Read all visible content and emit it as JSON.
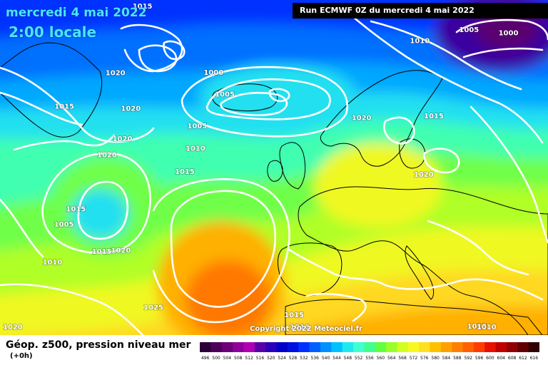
{
  "header": {
    "date_title": "mercredi 4 mai 2022",
    "time_title": "2:00 locale",
    "run_label": "Run ECMWF 0Z du mercredi 4 mai 2022"
  },
  "copyright": "Copyright 2022 Meteociel.fr",
  "footer": {
    "title": "Géop. z500, pression niveau mer",
    "subtitle": "(+0h)"
  },
  "legend": {
    "values": [
      "496",
      "500",
      "504",
      "508",
      "512",
      "516",
      "520",
      "524",
      "528",
      "532",
      "536",
      "540",
      "544",
      "548",
      "552",
      "556",
      "560",
      "564",
      "568",
      "572",
      "576",
      "580",
      "584",
      "588",
      "592",
      "596",
      "600",
      "604",
      "608",
      "612",
      "616"
    ],
    "colors": [
      "#2b0039",
      "#4c0059",
      "#6c0078",
      "#8e0098",
      "#af00b4",
      "#5a00a8",
      "#2a00b8",
      "#0000c8",
      "#0010e0",
      "#0030ff",
      "#0060ff",
      "#0090ff",
      "#00c0ff",
      "#20e8f0",
      "#40ffd0",
      "#40ff90",
      "#60ff40",
      "#98ff28",
      "#d0ff20",
      "#f8f820",
      "#ffe020",
      "#ffc000",
      "#ffa000",
      "#ff8000",
      "#ff6000",
      "#ff3c00",
      "#e81000",
      "#c00000",
      "#900000",
      "#600000",
      "#300000"
    ]
  },
  "map_style": {
    "zones": [
      "#0000c8",
      "#0030ff",
      "#0070ff",
      "#00a8ff",
      "#20e0f0",
      "#40ffb0",
      "#70ff48",
      "#b0ff28",
      "#f0f820",
      "#ffd820",
      "#ffb000",
      "#ff8400",
      "#ff5a00"
    ],
    "high_pressure_core": "#ff7800",
    "low_pressure_core": "#5a0070",
    "isobar_color": "#ffffff",
    "coast_color": "#000000"
  },
  "isobar_labels": [
    {
      "text": "1015",
      "x": -49,
      "y": 76
    },
    {
      "text": "1020",
      "x": -53,
      "y": 66
    },
    {
      "text": "1015",
      "x": -64,
      "y": 62
    },
    {
      "text": "1020",
      "x": -48,
      "y": 61
    },
    {
      "text": "1020",
      "x": -49,
      "y": 57
    },
    {
      "text": "1020",
      "x": -52,
      "y": 55
    },
    {
      "text": "1015",
      "x": -57,
      "y": 48
    },
    {
      "text": "1000",
      "x": -29,
      "y": 65
    },
    {
      "text": "1005",
      "x": -26,
      "y": 62
    },
    {
      "text": "1005",
      "x": -32,
      "y": 58
    },
    {
      "text": "1010",
      "x": -32,
      "y": 55
    },
    {
      "text": "1015",
      "x": -34,
      "y": 52
    },
    {
      "text": "1020",
      "x": 6,
      "y": 59
    },
    {
      "text": "1010",
      "x": 22,
      "y": 70
    },
    {
      "text": "1015",
      "x": 23,
      "y": 60
    },
    {
      "text": "1020",
      "x": 19,
      "y": 52
    },
    {
      "text": "1005",
      "x": 35,
      "y": 72
    },
    {
      "text": "1000",
      "x": 45,
      "y": 72
    },
    {
      "text": "1005",
      "x": -59,
      "y": 46
    },
    {
      "text": "1010",
      "x": -60,
      "y": 41
    },
    {
      "text": "1015",
      "x": -50,
      "y": 42
    },
    {
      "text": "1020",
      "x": -46,
      "y": 42
    },
    {
      "text": "1025",
      "x": -38,
      "y": 34
    },
    {
      "text": "1020",
      "x": -75,
      "y": 28
    },
    {
      "text": "1015",
      "x": -10,
      "y": 32
    },
    {
      "text": "1010",
      "x": -9,
      "y": 26
    },
    {
      "text": "1015",
      "x": 26,
      "y": 32
    },
    {
      "text": "1010",
      "x": 27,
      "y": 28
    }
  ]
}
